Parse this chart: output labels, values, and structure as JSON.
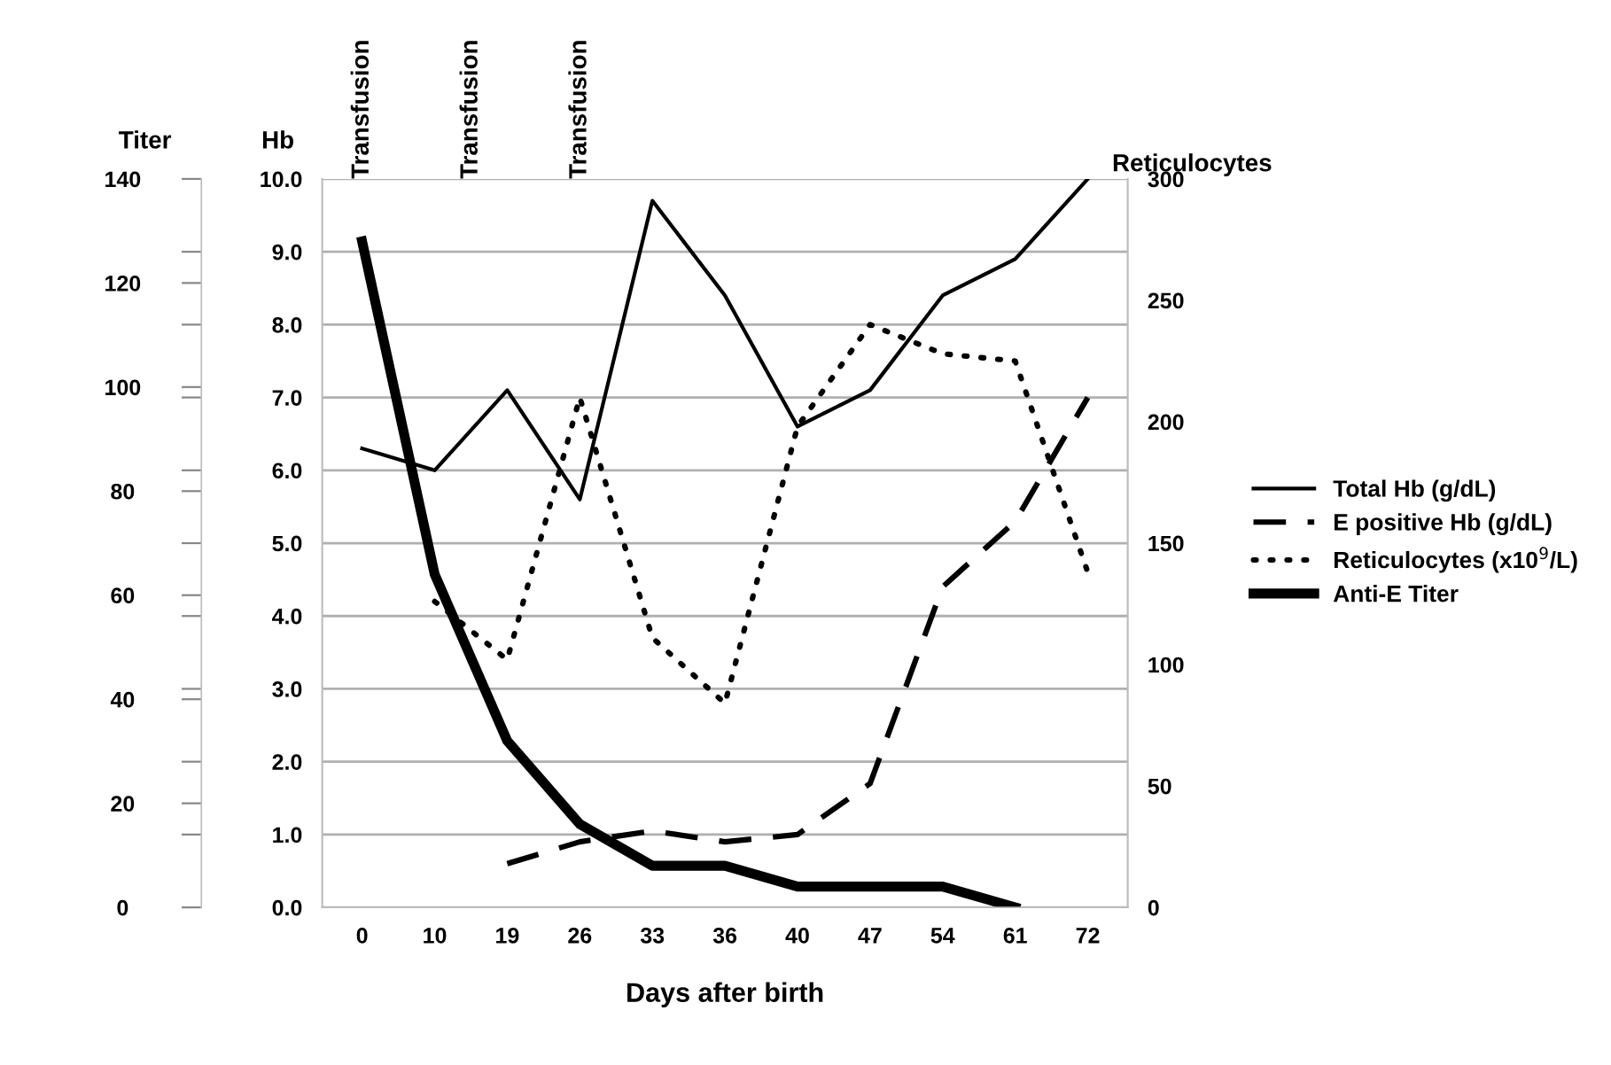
{
  "chart_data": {
    "type": "line",
    "categories": [
      "0",
      "10",
      "19",
      "26",
      "33",
      "36",
      "40",
      "47",
      "54",
      "61",
      "72"
    ],
    "xlabel": "Days after birth",
    "ylabel": "Hb",
    "y2label": "Reticulocytes",
    "y3label": "Titer",
    "ylim": [
      0,
      10
    ],
    "yticks": [
      {
        "value": 0,
        "label": "0.0"
      },
      {
        "value": 1,
        "label": "1.0"
      },
      {
        "value": 2,
        "label": "2.0"
      },
      {
        "value": 3,
        "label": "3.0"
      },
      {
        "value": 4,
        "label": "4.0"
      },
      {
        "value": 5,
        "label": "5.0"
      },
      {
        "value": 6,
        "label": "6.0"
      },
      {
        "value": 7,
        "label": "7.0"
      },
      {
        "value": 8,
        "label": "8.0"
      },
      {
        "value": 9,
        "label": "9.0"
      },
      {
        "value": 10,
        "label": "10.0"
      }
    ],
    "y2lim": [
      0,
      300
    ],
    "y2ticks": [
      0,
      50,
      100,
      150,
      200,
      250,
      300
    ],
    "y3lim": [
      0,
      140
    ],
    "y3ticks": [
      0,
      20,
      40,
      60,
      80,
      100,
      120,
      140,
      {
        "value": 14,
        "label": null
      },
      {
        "value": 28,
        "label": null
      },
      {
        "value": 42,
        "label": null
      },
      {
        "value": 56,
        "label": null
      },
      {
        "value": 70,
        "label": null
      },
      {
        "value": 84,
        "label": null
      },
      {
        "value": 98,
        "label": null
      },
      {
        "value": 112,
        "label": null
      },
      {
        "value": 126,
        "label": null
      }
    ],
    "grid": "y",
    "legend": "right",
    "marker": "none",
    "series": [
      {
        "name": "Total Hb (g/dL)",
        "color": "#000000",
        "line_style": "solid",
        "values": [
          6.3,
          6.0,
          7.1,
          5.6,
          9.7,
          8.4,
          6.6,
          7.1,
          8.4,
          8.9,
          10.0
        ]
      },
      {
        "name": "E positive Hb (g/dL)",
        "color": "#000000",
        "line_style": "dashed",
        "values": [
          null,
          null,
          0.6,
          0.9,
          1.05,
          0.9,
          1.0,
          1.7,
          4.4,
          5.3,
          7.0
        ]
      },
      {
        "name": "Reticulocytes (x10$^{9}$/L)",
        "color": "#000000",
        "line_style": "dotted",
        "axis": "y2",
        "values": [
          null,
          126,
          102,
          210,
          111,
          84,
          198,
          240,
          228,
          225,
          138
        ]
      },
      {
        "name": "Anti-E Titer",
        "color": "#000000",
        "line_style": "solid",
        "axis": "y3",
        "values": [
          128,
          64,
          32,
          16,
          8,
          8,
          4,
          4,
          4,
          0,
          null
        ]
      }
    ],
    "annotations": [
      "Transfusion",
      "Transfusion",
      "Transfusion"
    ]
  }
}
